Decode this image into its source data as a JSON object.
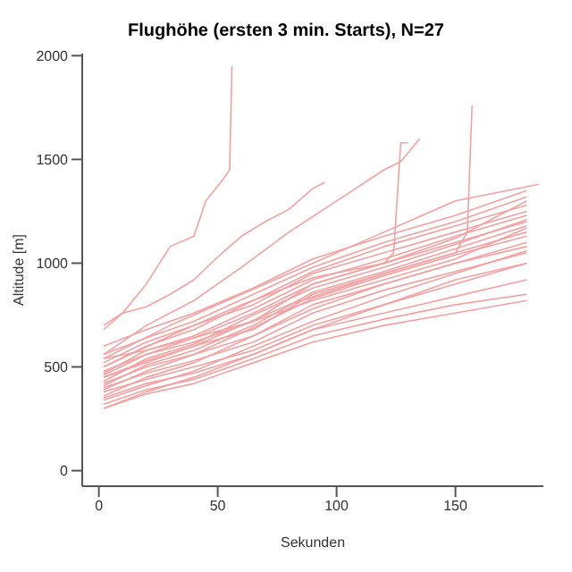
{
  "chart_data": {
    "type": "line",
    "title": "Flughöhe (ersten 3 min. Starts), N=27",
    "xlabel": "Sekunden",
    "ylabel": "Altitude [m]",
    "xlim": [
      -7,
      187
    ],
    "xticks": [
      0,
      50,
      100,
      150
    ],
    "ylim": [
      -75,
      2010
    ],
    "yticks": [
      0,
      500,
      1000,
      1500,
      2000
    ],
    "grid": false,
    "marker": "none",
    "line_style": "solid",
    "series": [
      {
        "color": "#f4a0a0",
        "x": [
          2,
          10,
          20,
          30,
          40,
          45,
          52,
          55,
          56
        ],
        "values": [
          680,
          760,
          900,
          1080,
          1130,
          1300,
          1400,
          1450,
          1950
        ]
      },
      {
        "color": "#f4a0a0",
        "x": [
          2,
          10,
          20,
          30,
          40,
          50,
          60,
          70,
          80,
          90,
          95
        ],
        "values": [
          700,
          760,
          790,
          850,
          920,
          1030,
          1130,
          1200,
          1260,
          1360,
          1390
        ]
      },
      {
        "color": "#f4a0a0",
        "x": [
          2,
          20,
          40,
          60,
          80,
          100,
          120,
          127,
          135
        ],
        "values": [
          560,
          700,
          820,
          980,
          1150,
          1300,
          1450,
          1490,
          1600
        ]
      },
      {
        "color": "#f4a0a0",
        "x": [
          2,
          30,
          60,
          90,
          120,
          124,
          127,
          130
        ],
        "values": [
          500,
          650,
          800,
          930,
          1000,
          1050,
          1580,
          1580
        ]
      },
      {
        "color": "#f4a0a0",
        "x": [
          2,
          40,
          80,
          120,
          150,
          155,
          157
        ],
        "values": [
          450,
          600,
          800,
          950,
          1050,
          1150,
          1760
        ]
      },
      {
        "color": "#f4a0a0",
        "x": [
          2,
          30,
          60,
          90,
          120,
          150,
          185
        ],
        "values": [
          540,
          700,
          850,
          1000,
          1150,
          1300,
          1380
        ]
      },
      {
        "color": "#f4a0a0",
        "x": [
          2,
          20,
          40,
          65,
          90,
          120,
          150,
          180
        ],
        "values": [
          520,
          620,
          700,
          800,
          950,
          1050,
          1150,
          1250
        ]
      },
      {
        "color": "#f4a0a0",
        "x": [
          2,
          20,
          40,
          65,
          90,
          120,
          150,
          180
        ],
        "values": [
          480,
          560,
          620,
          720,
          900,
          1000,
          1100,
          1200
        ]
      },
      {
        "color": "#f4a0a0",
        "x": [
          2,
          20,
          40,
          65,
          90,
          120,
          150,
          180
        ],
        "values": [
          450,
          530,
          600,
          680,
          850,
          950,
          1050,
          1150
        ]
      },
      {
        "color": "#f4a0a0",
        "x": [
          2,
          20,
          40,
          65,
          90,
          120,
          150,
          180
        ],
        "values": [
          420,
          500,
          560,
          650,
          800,
          900,
          1000,
          1100
        ]
      },
      {
        "color": "#f4a0a0",
        "x": [
          2,
          20,
          40,
          65,
          90,
          120,
          150,
          180
        ],
        "values": [
          400,
          470,
          530,
          620,
          760,
          870,
          960,
          1050
        ]
      },
      {
        "color": "#f4a0a0",
        "x": [
          2,
          20,
          40,
          65,
          90,
          120,
          150,
          180
        ],
        "values": [
          380,
          440,
          500,
          580,
          700,
          800,
          900,
          1000
        ]
      },
      {
        "color": "#f4a0a0",
        "x": [
          2,
          20,
          40,
          65,
          90,
          120,
          150,
          180
        ],
        "values": [
          350,
          420,
          470,
          560,
          680,
          760,
          840,
          920
        ]
      },
      {
        "color": "#f4a0a0",
        "x": [
          2,
          20,
          40,
          65,
          90,
          120,
          150,
          180
        ],
        "values": [
          320,
          390,
          440,
          540,
          650,
          730,
          800,
          850
        ]
      },
      {
        "color": "#f4a0a0",
        "x": [
          2,
          20,
          40,
          65,
          90,
          120,
          150,
          180
        ],
        "values": [
          300,
          370,
          420,
          520,
          620,
          700,
          760,
          820
        ]
      },
      {
        "color": "#f4a0a0",
        "x": [
          2,
          20,
          40,
          65,
          90,
          120,
          150,
          180
        ],
        "values": [
          560,
          640,
          720,
          850,
          980,
          1100,
          1200,
          1320
        ]
      },
      {
        "color": "#f4a0a0",
        "x": [
          2,
          20,
          40,
          65,
          90,
          120,
          150,
          180
        ],
        "values": [
          600,
          680,
          760,
          880,
          1020,
          1130,
          1230,
          1350
        ]
      },
      {
        "color": "#f4a0a0",
        "x": [
          2,
          20,
          40,
          65,
          90,
          120,
          150,
          180
        ],
        "values": [
          500,
          600,
          680,
          820,
          960,
          1080,
          1180,
          1280
        ]
      },
      {
        "color": "#f4a0a0",
        "x": [
          2,
          20,
          40,
          65,
          90,
          120,
          150,
          180
        ],
        "values": [
          470,
          580,
          650,
          780,
          920,
          1020,
          1130,
          1230
        ]
      },
      {
        "color": "#f4a0a0",
        "x": [
          2,
          20,
          40,
          65,
          90,
          120,
          150,
          180
        ],
        "values": [
          430,
          540,
          610,
          750,
          880,
          980,
          1090,
          1210
        ]
      },
      {
        "color": "#f4a0a0",
        "x": [
          2,
          20,
          40,
          65,
          90,
          120,
          150,
          180
        ],
        "values": [
          410,
          510,
          580,
          700,
          860,
          960,
          1070,
          1180
        ]
      },
      {
        "color": "#f4a0a0",
        "x": [
          2,
          20,
          40,
          65,
          90,
          120,
          150,
          180
        ],
        "values": [
          390,
          480,
          560,
          690,
          830,
          940,
          1040,
          1130
        ]
      },
      {
        "color": "#f4a0a0",
        "x": [
          2,
          20,
          40,
          65,
          90,
          120,
          150,
          180
        ],
        "values": [
          360,
          450,
          520,
          650,
          780,
          900,
          1000,
          1080
        ]
      },
      {
        "color": "#f4a0a0",
        "x": [
          2,
          20,
          40,
          65,
          90,
          120,
          150,
          180
        ],
        "values": [
          540,
          580,
          640,
          720,
          820,
          920,
          1020,
          1170
        ]
      },
      {
        "color": "#f4a0a0",
        "x": [
          2,
          20,
          40,
          65,
          90,
          120,
          150,
          180
        ],
        "values": [
          340,
          410,
          480,
          600,
          720,
          840,
          950,
          1060
        ]
      },
      {
        "color": "#f4a0a0",
        "x": [
          2,
          20,
          40,
          65,
          90,
          120,
          150,
          180
        ],
        "values": [
          460,
          560,
          640,
          760,
          900,
          1000,
          1120,
          1300
        ]
      },
      {
        "color": "#f4a0a0",
        "x": [
          2,
          20,
          40,
          65,
          90,
          120,
          150,
          180
        ],
        "values": [
          300,
          380,
          450,
          560,
          680,
          800,
          920,
          1000
        ]
      }
    ]
  }
}
